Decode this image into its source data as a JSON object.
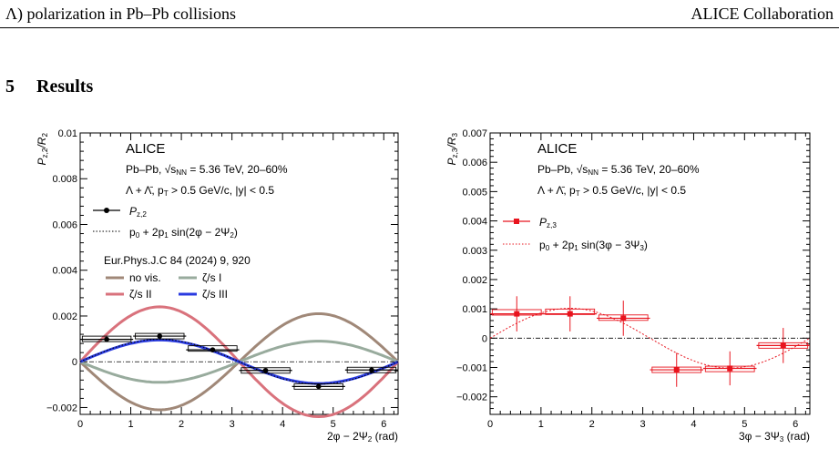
{
  "header": {
    "left": "Λ) polarization in Pb–Pb collisions",
    "right": "ALICE Collaboration"
  },
  "section": {
    "number": "5",
    "title": "Results"
  },
  "chart_data": [
    {
      "type": "scatter",
      "ylabel_main": "P",
      "ylabel_sub1": "z,2",
      "ylabel_div": "/R",
      "ylabel_sub2": "2",
      "xlabel_main": "2φ − 2Ψ",
      "xlabel_sub": "2",
      "xlabel_unit": " (rad)",
      "xlim": [
        0,
        6.2832
      ],
      "ylim": [
        -0.0023,
        0.01
      ],
      "xticks": [
        0,
        1,
        2,
        3,
        4,
        5,
        6
      ],
      "yticks": [
        {
          "v": -0.002,
          "label": "−0.002"
        },
        {
          "v": 0,
          "label": "0"
        },
        {
          "v": 0.002,
          "label": "0.002"
        },
        {
          "v": 0.004,
          "label": "0.004"
        },
        {
          "v": 0.006,
          "label": "0.006"
        },
        {
          "v": 0.008,
          "label": "0.008"
        },
        {
          "v": 0.01,
          "label": "0.01"
        }
      ],
      "annotations": {
        "experiment": "ALICE",
        "system": "Pb–Pb, √s",
        "system_sub": "NN",
        "system_rest": " = 5.36 TeV, 20–60%",
        "cuts": "Λ + Λ̄, p",
        "cuts_sub": "T",
        "cuts_rest": " > 0.5 GeV/c, |y| < 0.5",
        "reference": "Eur.Phys.J.C 84 (2024) 9, 920"
      },
      "legend": {
        "data_label": "P",
        "data_sub": "z,2",
        "fit_label": "p",
        "fit_sub0": "0",
        "fit_mid": " + 2p",
        "fit_sub1": "1",
        "fit_rest": " sin(2φ − 2Ψ",
        "fit_sub2": "2",
        "fit_close": ")",
        "models": [
          "no vis.",
          "ζ/s I",
          "ζ/s II",
          "ζ/s III"
        ]
      },
      "series": [
        {
          "name": "Pz,2",
          "color": "#000000",
          "x": [
            0.524,
            1.571,
            2.618,
            3.665,
            4.712,
            5.76
          ],
          "y": [
            0.00098,
            0.00112,
            0.00052,
            -0.00038,
            -0.00108,
            -0.00036
          ],
          "yerr": [
            0.00012,
            0.00012,
            0.0001,
            0.0001,
            0.00012,
            0.00012
          ],
          "sys_y": [
            0.001,
            0.00112,
            0.00058,
            -0.00038,
            -0.00108,
            -0.00036
          ]
        }
      ],
      "fit": {
        "p0": 0,
        "p1": 0.00049,
        "color": "#000000"
      },
      "models": [
        {
          "name": "no vis.",
          "amp": -0.0021,
          "color": "#a08878"
        },
        {
          "name": "ζ/s I",
          "amp": -0.0009,
          "color": "#98ab9d"
        },
        {
          "name": "ζ/s II",
          "amp": 0.0024,
          "color": "#d9727c"
        },
        {
          "name": "ζ/s III",
          "amp": 0.00095,
          "color": "#2a3be0"
        }
      ]
    },
    {
      "type": "scatter",
      "ylabel_main": "P",
      "ylabel_sub1": "z,3",
      "ylabel_div": "/R",
      "ylabel_sub2": "3",
      "xlabel_main": "3φ − 3Ψ",
      "xlabel_sub": "3",
      "xlabel_unit": " (rad)",
      "xlim": [
        0,
        6.2832
      ],
      "ylim": [
        -0.0026,
        0.007
      ],
      "xticks": [
        0,
        1,
        2,
        3,
        4,
        5,
        6
      ],
      "yticks": [
        {
          "v": -0.002,
          "label": "−0.002"
        },
        {
          "v": -0.001,
          "label": "−0.001"
        },
        {
          "v": 0,
          "label": "0"
        },
        {
          "v": 0.001,
          "label": "0.001"
        },
        {
          "v": 0.002,
          "label": "0.002"
        },
        {
          "v": 0.003,
          "label": "0.003"
        },
        {
          "v": 0.004,
          "label": "0.004"
        },
        {
          "v": 0.005,
          "label": "0.005"
        },
        {
          "v": 0.006,
          "label": "0.006"
        },
        {
          "v": 0.007,
          "label": "0.007"
        }
      ],
      "annotations": {
        "experiment": "ALICE",
        "system": "Pb–Pb, √s",
        "system_sub": "NN",
        "system_rest": " = 5.36 TeV, 20–60%",
        "cuts": "Λ + Λ̄, p",
        "cuts_sub": "T",
        "cuts_rest": " > 0.5 GeV/c, |y| < 0.5"
      },
      "legend": {
        "data_label": "P",
        "data_sub": "z,3",
        "fit_label": "p",
        "fit_sub0": "0",
        "fit_mid": " + 2p",
        "fit_sub1": "1",
        "fit_rest": " sin(3φ − 3Ψ",
        "fit_sub2": "3",
        "fit_close": ")"
      },
      "series": [
        {
          "name": "Pz,3",
          "color": "#e8141e",
          "x": [
            0.524,
            1.571,
            2.618,
            3.665,
            4.712,
            5.76
          ],
          "y": [
            0.00083,
            0.00083,
            0.00068,
            -0.00108,
            -0.00103,
            -0.00025
          ],
          "yerr": [
            0.0006,
            0.0006,
            0.0006,
            0.00058,
            0.00058,
            0.0006
          ],
          "sys_y": [
            0.00088,
            0.0009,
            0.0007,
            -0.00108,
            -0.00105,
            -0.00025
          ]
        }
      ],
      "fit": {
        "p0": 0,
        "p1": 0.00051,
        "color": "#e8141e"
      }
    }
  ]
}
